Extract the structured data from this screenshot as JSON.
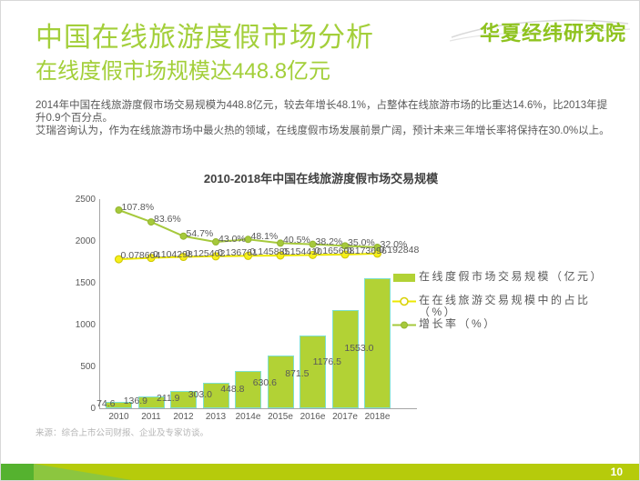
{
  "page": {
    "number": "10"
  },
  "header": {
    "logo": "华夏经纬研究院",
    "title": "中国在线旅游度假市场分析",
    "subtitle": "在线度假市场规模达448.8亿元"
  },
  "body": {
    "paragraphs": [
      "2014年中国在线旅游度假市场交易规模为448.8亿元，较去年增长48.1%，占整体在线旅游市场的比重达14.6%，比2013年提升0.9个百分点。",
      "艾瑞咨询认为，作为在线旅游市场中最火热的领域，在线度假市场发展前景广阔，预计未来三年增长率将保持在30.0%以上。"
    ]
  },
  "chart_data": {
    "type": "combo",
    "title": "2010-2018年中国在线旅游度假市场交易规模",
    "categories": [
      "2010",
      "2011",
      "2012",
      "2013",
      "2014e",
      "2015e",
      "2016e",
      "2017e",
      "2018e"
    ],
    "series": [
      {
        "name": "在线度假市场交易规模（亿元）",
        "type": "bar",
        "axis": "primary",
        "values": [
          74.6,
          136.9,
          211.9,
          303.0,
          448.8,
          630.6,
          871.5,
          1176.5,
          1553.0
        ],
        "labels": [
          "74.6",
          "136.9",
          "211.9",
          "303.0",
          "448.8",
          "630.6",
          "871.5",
          "1176.5",
          "1553.0"
        ],
        "color": "#b2d235",
        "border_color": "#7ee0cf"
      },
      {
        "name": "在在线旅游交易规模中的占比（%）",
        "type": "line",
        "axis": "secondary",
        "values": [
          7.8604,
          10.4298,
          12.5402,
          13.6761,
          14.5885,
          15.441,
          16.5608,
          17.3696,
          19.2848
        ],
        "labels": [
          "0.078604",
          "0.104298",
          "0.125402",
          "0.136761",
          "0.145885",
          "0.154410",
          "0.165608",
          "0.173696",
          "0.192848"
        ],
        "color": "#ece800",
        "marker": "hollow-circle"
      },
      {
        "name": "增长率（%）",
        "type": "line",
        "axis": "secondary",
        "values": [
          107.8,
          83.6,
          54.7,
          43.0,
          48.1,
          40.5,
          38.2,
          35.0,
          32.0
        ],
        "labels": [
          "107.8%",
          "83.6%",
          "54.7%",
          "43.0%",
          "48.1%",
          "40.5%",
          "38.2%",
          "35.0%",
          "32.0%"
        ],
        "color": "#a6c93c",
        "marker": "filled-circle"
      }
    ],
    "y_axis": {
      "ticks": [
        0,
        500,
        1000,
        1500,
        2000,
        2500
      ],
      "max": 2500
    },
    "legend_position": "right",
    "grid": false
  },
  "source": "来源：综合上市公司财报、企业及专家访谈。",
  "colors": {
    "accent_green": "#a3cf3a",
    "logo_green": "#8fc31f",
    "bar_fill": "#b2d235",
    "bar_border": "#7ee0cf",
    "line_green": "#a6c93c",
    "line_yellow": "#ece800",
    "footer_bar": "#b6cb0b",
    "footer_block": "#55b22f",
    "footer_triangle": "#8cc63f"
  }
}
